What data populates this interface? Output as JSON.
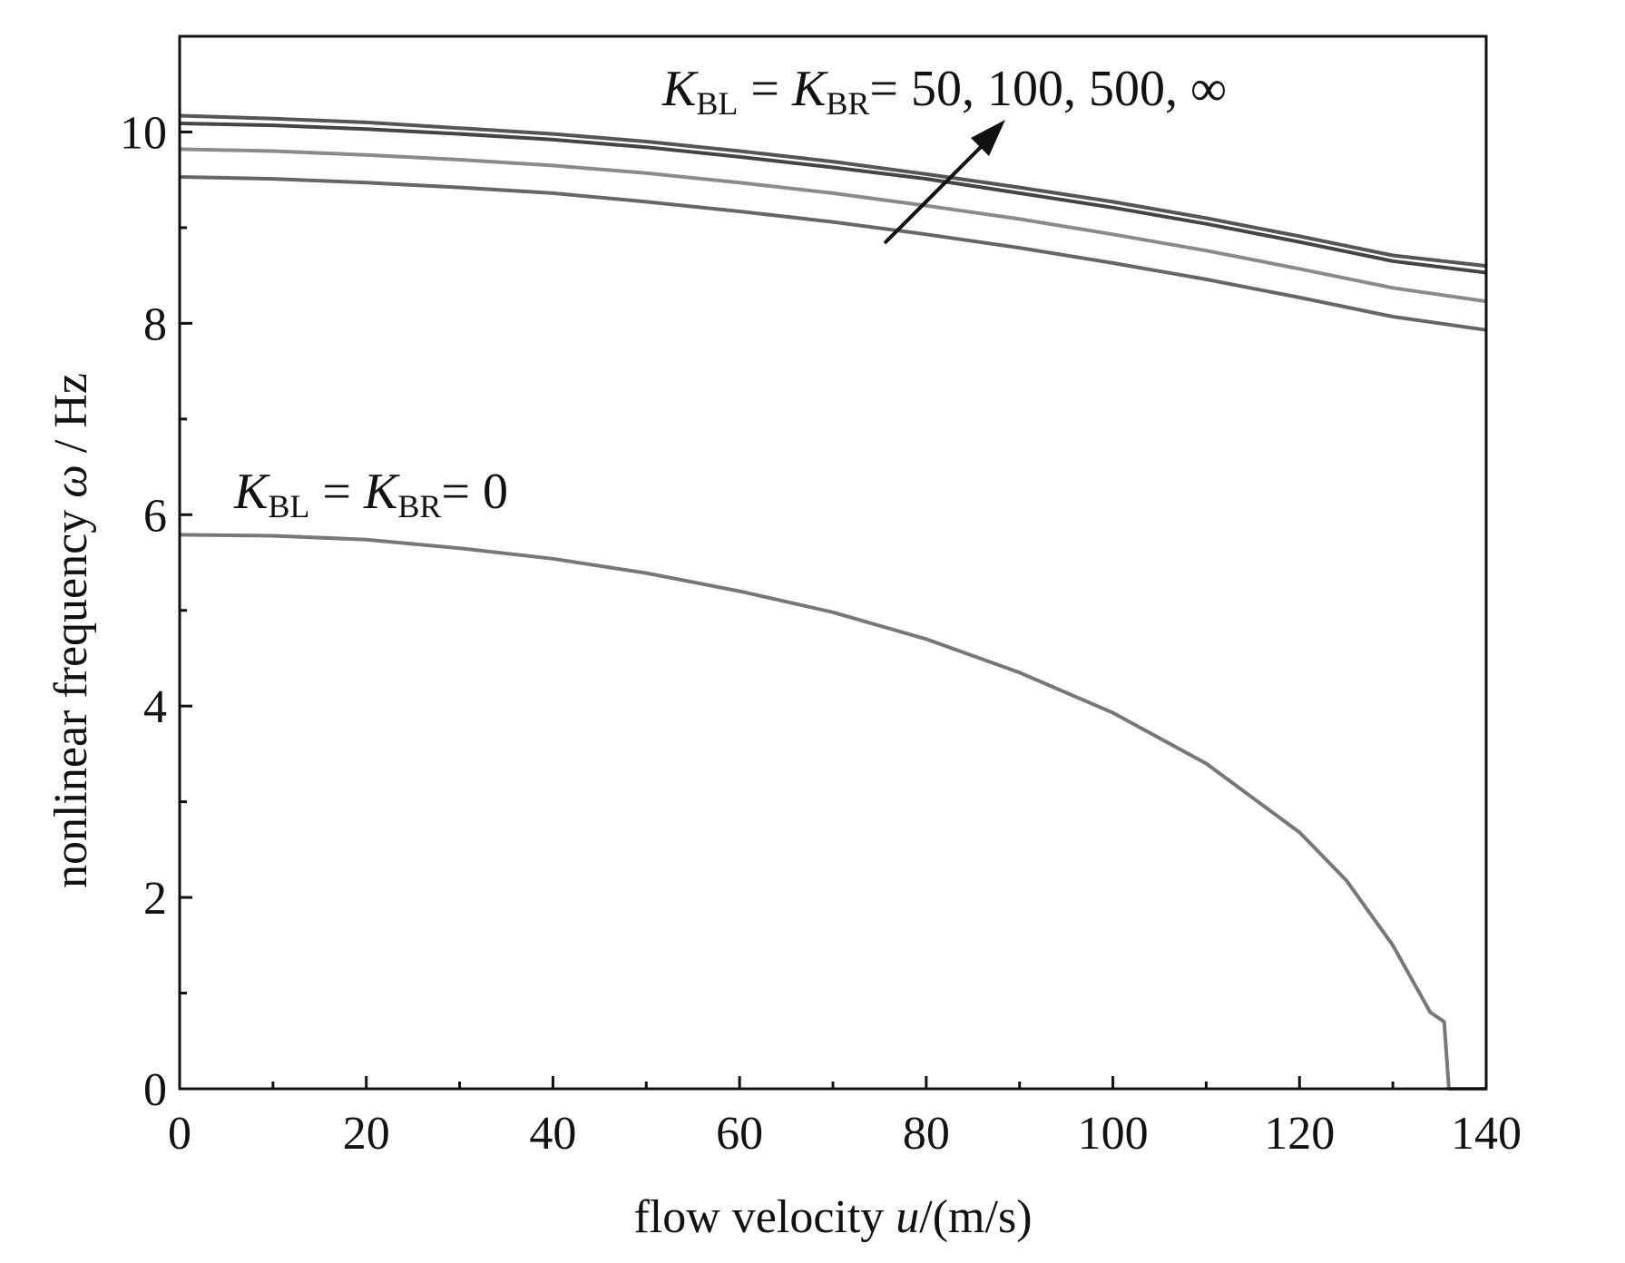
{
  "chart_data": {
    "type": "line",
    "xlabel": {
      "prefix": "flow velocity ",
      "var": "u",
      "suffix": "/(m/s)"
    },
    "ylabel": {
      "prefix": "nonlinear frequency ",
      "var": "ω",
      "suffix": " / Hz"
    },
    "xlim": [
      0,
      140
    ],
    "ylim": [
      0,
      11
    ],
    "xticks": [
      0,
      20,
      40,
      60,
      80,
      100,
      120,
      140
    ],
    "yticks": [
      0,
      2,
      4,
      6,
      8,
      10
    ],
    "x_minor_step": 10,
    "y_minor_step": 1,
    "grid": false,
    "x": [
      0,
      10,
      20,
      30,
      40,
      50,
      60,
      70,
      80,
      90,
      100,
      110,
      120,
      130,
      140
    ],
    "series": [
      {
        "color": "#555555",
        "values": [
          10.17,
          10.14,
          10.1,
          10.04,
          9.98,
          9.9,
          9.8,
          9.69,
          9.56,
          9.42,
          9.27,
          9.1,
          8.91,
          8.71,
          8.6
        ]
      },
      {
        "color": "#444444",
        "values": [
          10.09,
          10.07,
          10.03,
          9.98,
          9.92,
          9.84,
          9.74,
          9.63,
          9.51,
          9.36,
          9.21,
          9.04,
          8.85,
          8.65,
          8.53
        ]
      },
      {
        "color": "#8a8a8a",
        "values": [
          9.82,
          9.8,
          9.76,
          9.71,
          9.65,
          9.57,
          9.47,
          9.36,
          9.23,
          9.09,
          8.93,
          8.76,
          8.57,
          8.37,
          8.23
        ]
      },
      {
        "color": "#666666",
        "values": [
          9.53,
          9.51,
          9.47,
          9.42,
          9.36,
          9.27,
          9.17,
          9.06,
          8.93,
          8.79,
          8.63,
          8.46,
          8.27,
          8.07,
          7.93
        ]
      },
      {
        "color": "#777777",
        "x": [
          0,
          10,
          20,
          30,
          40,
          50,
          60,
          70,
          80,
          90,
          100,
          110,
          120,
          125,
          130,
          134,
          135.5,
          136,
          140
        ],
        "values": [
          5.79,
          5.78,
          5.74,
          5.65,
          5.54,
          5.39,
          5.2,
          4.98,
          4.7,
          4.35,
          3.93,
          3.4,
          2.68,
          2.18,
          1.5,
          0.8,
          0.7,
          0.0,
          0.0
        ]
      }
    ],
    "annotations": [
      {
        "K": "K",
        "sub1": "BL",
        "eq": " = ",
        "sub2": "BR",
        "rest": "= 50, 100, 500, ∞"
      },
      {
        "K": "K",
        "sub1": "BL",
        "eq": " = ",
        "sub2": "BR",
        "rest": "= 0"
      }
    ]
  }
}
